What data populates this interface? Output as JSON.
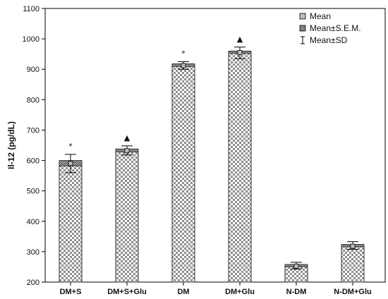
{
  "chart_data": {
    "type": "bar",
    "ylabel": "Il-12 (pg/dL)",
    "ylim": [
      200,
      1100
    ],
    "yticks": [
      200,
      300,
      400,
      500,
      600,
      700,
      800,
      900,
      1000,
      1100
    ],
    "categories": [
      "DM+S",
      "DM+S+Glu",
      "DM",
      "DM+Glu",
      "N-DM",
      "N-DM+Glu"
    ],
    "series": [
      {
        "name": "Mean",
        "values": [
          590,
          632,
          912,
          955,
          252,
          318
        ],
        "sem_low": [
          582,
          628,
          909,
          952,
          250,
          316
        ],
        "sem_high": [
          600,
          638,
          918,
          960,
          258,
          324
        ],
        "sd_low": [
          560,
          618,
          900,
          935,
          243,
          308
        ],
        "sd_high": [
          620,
          648,
          925,
          973,
          265,
          333
        ]
      }
    ],
    "annotations": [
      "*",
      "▲",
      "*",
      "▲",
      "",
      ""
    ],
    "legend": {
      "position": "top-right",
      "entries": [
        "Mean",
        "Mean±S.E.M.",
        "Mean±SD"
      ]
    },
    "grid": false,
    "colors": {
      "bar_fill": "#9a9a9a",
      "frame": "#000000"
    }
  }
}
